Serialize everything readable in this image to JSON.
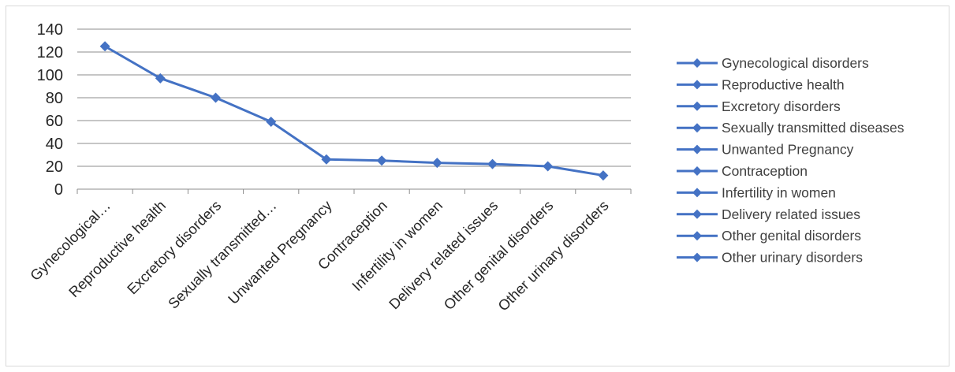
{
  "chart_data": {
    "type": "line",
    "title": "",
    "xlabel": "",
    "ylabel": "",
    "categories": [
      "Gynecological…",
      "Reproductive health",
      "Excretory disorders",
      "Sexually transmitted…",
      "Unwanted Pregnancy",
      "Contraception",
      "Infertility in women",
      "Delivery related issues",
      "Other genital disorders",
      "Other urinary disorders"
    ],
    "values": [
      125,
      97,
      80,
      59,
      26,
      25,
      23,
      22,
      20,
      12
    ],
    "ylim": [
      0,
      140
    ],
    "yticks": [
      0,
      20,
      40,
      60,
      80,
      100,
      120,
      140
    ],
    "grid": true,
    "legend": {
      "position": "right",
      "entries": [
        "Gynecological disorders",
        "Reproductive health",
        "Excretory disorders",
        "Sexually transmitted diseases",
        "Unwanted Pregnancy",
        "Contraception",
        "Infertility in women",
        "Delivery related issues",
        "Other genital disorders",
        "Other urinary disorders"
      ]
    },
    "colors": {
      "series": "#4472c4",
      "grid": "#8c8c8c",
      "axis": "#8c8c8c",
      "text": "#262626"
    }
  }
}
